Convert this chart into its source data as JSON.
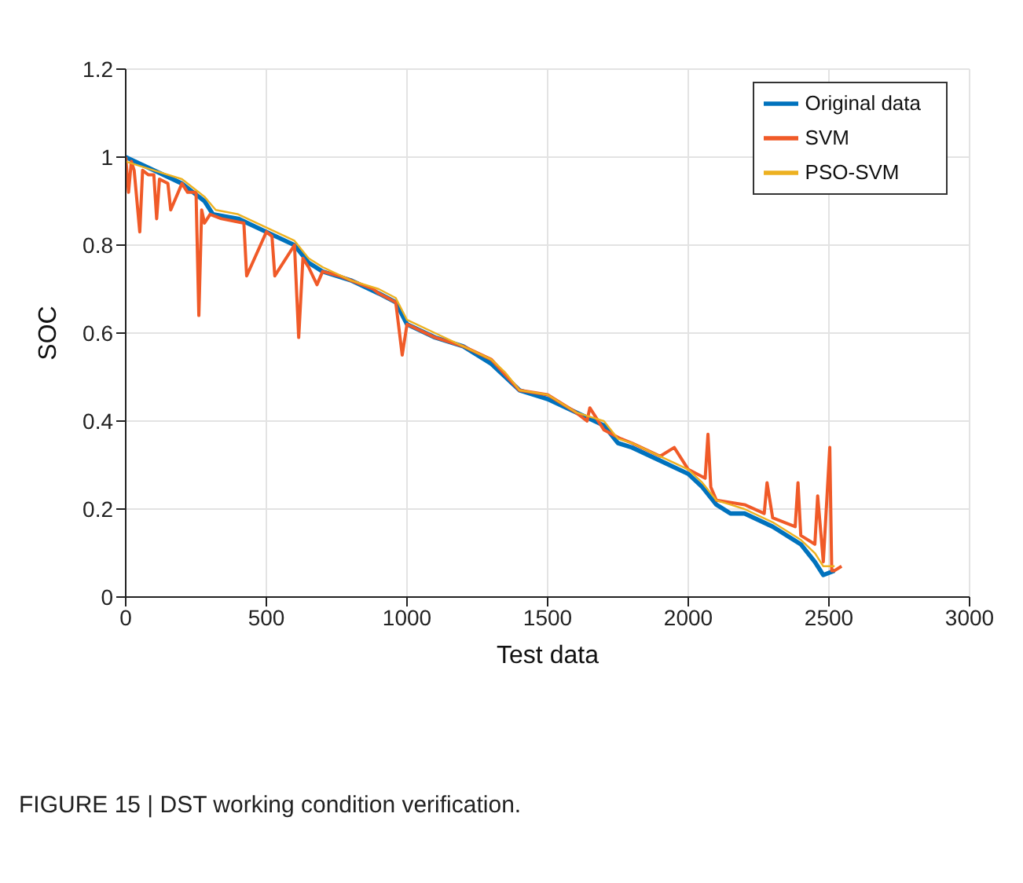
{
  "chart_data": {
    "type": "line",
    "xlabel": "Test data",
    "ylabel": "SOC",
    "xlim": [
      0,
      3000
    ],
    "xticks": [
      0,
      500,
      1000,
      1500,
      2000,
      2500,
      3000
    ],
    "ylim": [
      0,
      1.2
    ],
    "yticks": [
      0,
      0.2,
      0.4,
      0.6,
      0.8,
      1,
      1.2
    ],
    "grid": true,
    "legend": "top right",
    "marker": "none",
    "line_style": "solid",
    "annotations": [
      "FIGURE 15 | DST working condition verification."
    ],
    "series": [
      {
        "name": "Original data",
        "color": "#0072bd",
        "x": [
          0,
          100,
          200,
          280,
          310,
          400,
          500,
          600,
          650,
          700,
          800,
          900,
          960,
          1000,
          1100,
          1200,
          1300,
          1350,
          1400,
          1500,
          1600,
          1700,
          1750,
          1800,
          1900,
          2000,
          2050,
          2100,
          2150,
          2200,
          2300,
          2400,
          2450,
          2480,
          2520
        ],
        "values": [
          1.0,
          0.97,
          0.94,
          0.9,
          0.87,
          0.86,
          0.83,
          0.8,
          0.76,
          0.74,
          0.72,
          0.69,
          0.67,
          0.62,
          0.59,
          0.57,
          0.53,
          0.5,
          0.47,
          0.45,
          0.42,
          0.39,
          0.35,
          0.34,
          0.31,
          0.28,
          0.25,
          0.21,
          0.19,
          0.19,
          0.16,
          0.12,
          0.08,
          0.05,
          0.06
        ]
      },
      {
        "name": "SVM",
        "color": "#f05a28",
        "x": [
          0,
          10,
          20,
          30,
          50,
          60,
          80,
          100,
          110,
          120,
          150,
          160,
          200,
          220,
          250,
          260,
          270,
          280,
          300,
          340,
          420,
          430,
          500,
          520,
          530,
          600,
          615,
          630,
          650,
          680,
          700,
          760,
          800,
          880,
          900,
          960,
          983,
          1000,
          1100,
          1200,
          1300,
          1400,
          1500,
          1600,
          1640,
          1650,
          1700,
          1760,
          1800,
          1900,
          1950,
          2000,
          2060,
          2070,
          2080,
          2100,
          2200,
          2270,
          2280,
          2300,
          2380,
          2390,
          2400,
          2450,
          2460,
          2480,
          2503,
          2510,
          2520,
          2545
        ],
        "values": [
          1.0,
          0.92,
          0.99,
          0.97,
          0.83,
          0.97,
          0.96,
          0.96,
          0.86,
          0.95,
          0.94,
          0.88,
          0.94,
          0.92,
          0.92,
          0.64,
          0.88,
          0.85,
          0.87,
          0.86,
          0.85,
          0.73,
          0.83,
          0.82,
          0.73,
          0.8,
          0.59,
          0.77,
          0.75,
          0.71,
          0.74,
          0.73,
          0.72,
          0.7,
          0.69,
          0.67,
          0.55,
          0.62,
          0.59,
          0.57,
          0.54,
          0.47,
          0.46,
          0.42,
          0.4,
          0.43,
          0.38,
          0.36,
          0.35,
          0.32,
          0.34,
          0.29,
          0.27,
          0.37,
          0.25,
          0.22,
          0.21,
          0.19,
          0.26,
          0.18,
          0.16,
          0.26,
          0.14,
          0.12,
          0.23,
          0.08,
          0.34,
          0.06,
          0.06,
          0.07
        ]
      },
      {
        "name": "PSO-SVM",
        "color": "#edb120",
        "x": [
          0,
          100,
          200,
          280,
          320,
          400,
          500,
          600,
          650,
          700,
          800,
          900,
          960,
          1000,
          1100,
          1200,
          1300,
          1350,
          1400,
          1500,
          1600,
          1700,
          1750,
          1800,
          1900,
          2000,
          2050,
          2100,
          2150,
          2200,
          2300,
          2400,
          2450,
          2480,
          2520
        ],
        "values": [
          0.99,
          0.97,
          0.95,
          0.91,
          0.88,
          0.87,
          0.84,
          0.81,
          0.77,
          0.75,
          0.72,
          0.7,
          0.68,
          0.63,
          0.6,
          0.57,
          0.54,
          0.51,
          0.47,
          0.46,
          0.42,
          0.4,
          0.36,
          0.35,
          0.32,
          0.29,
          0.26,
          0.22,
          0.21,
          0.2,
          0.17,
          0.13,
          0.1,
          0.07,
          0.07
        ]
      }
    ]
  }
}
